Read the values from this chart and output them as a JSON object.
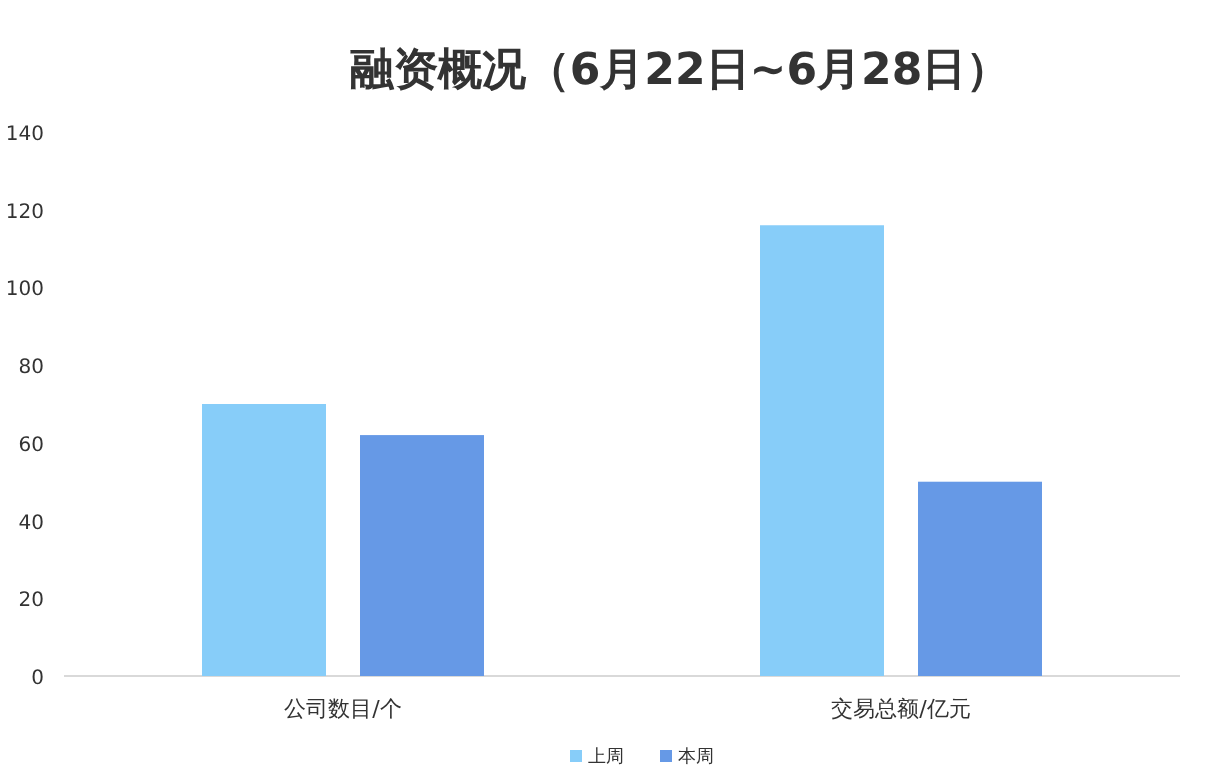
{
  "chart_data": {
    "type": "bar",
    "title": "融资概况（6月22日~6月28日）",
    "categories": [
      "公司数目/个",
      "交易总额/亿元"
    ],
    "series": [
      {
        "name": "上周",
        "color": "#87cdf9",
        "values": [
          70,
          116
        ]
      },
      {
        "name": "本周",
        "color": "#6699e6",
        "values": [
          62,
          50
        ]
      }
    ],
    "ylim": [
      0,
      140
    ],
    "yticks": [
      0,
      20,
      40,
      60,
      80,
      100,
      120,
      140
    ],
    "grid": false,
    "legend": "bottom"
  }
}
